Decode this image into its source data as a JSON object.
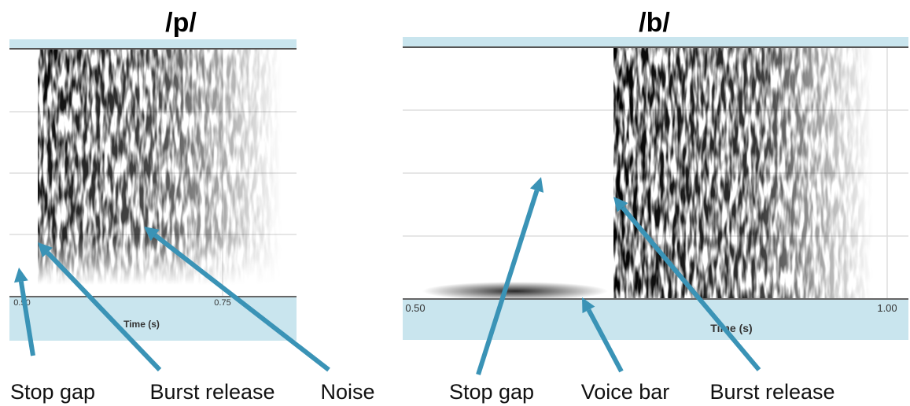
{
  "panels": [
    {
      "title": "/p/",
      "ticks": [
        "0.50",
        "0.75"
      ],
      "axis_label": "Time (s)",
      "annotations": [
        "Stop gap",
        "Burst release",
        "Noise"
      ]
    },
    {
      "title": "/b/",
      "ticks": [
        "0.50",
        "1.00"
      ],
      "axis_label": "Time (s)",
      "annotations": [
        "Stop gap",
        "Voice bar",
        "Burst release"
      ]
    }
  ]
}
